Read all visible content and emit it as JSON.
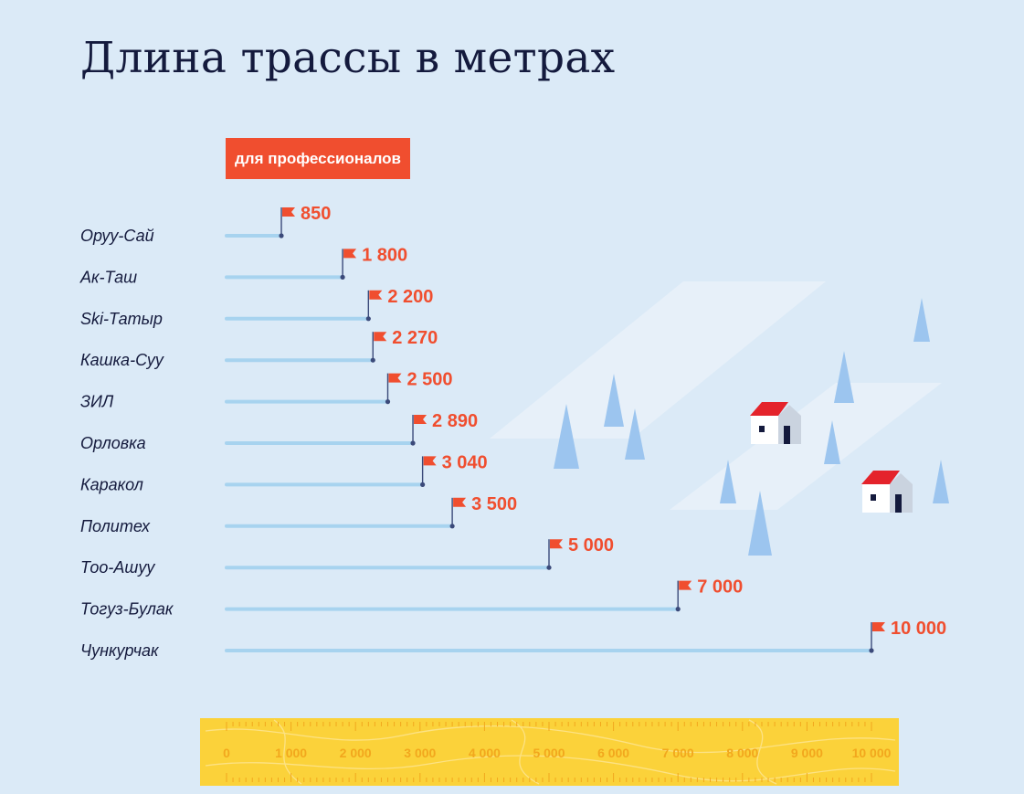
{
  "title": "Длина трассы в метрах",
  "badge": "для профессионалов",
  "colors": {
    "background": "#dbeaf7",
    "line": "#a7d3ef",
    "flag": "#f04e2f",
    "value_text": "#f04e2f",
    "label_text": "#141a3d",
    "ruler": "#fbd23a",
    "ruler_text": "#f2a71d",
    "tree": "#9cc5ef",
    "house_roof": "#e4232b"
  },
  "chart_data": {
    "type": "bar",
    "categories": [
      "Оруу-Сай",
      "Ак-Таш",
      "Ski-Татыр",
      "Кашка-Суу",
      "ЗИЛ",
      "Орловка",
      "Каракол",
      "Политех",
      "Тоо-Ашуу",
      "Тогуз-Булак",
      "Чункурчак"
    ],
    "values": [
      850,
      1800,
      2200,
      2270,
      2500,
      2890,
      3040,
      3500,
      5000,
      7000,
      10000
    ],
    "value_labels": [
      "850",
      "1 800",
      "2 200",
      "2 270",
      "2 500",
      "2 890",
      "3 040",
      "3 500",
      "5 000",
      "7 000",
      "10 000"
    ],
    "xlim": [
      0,
      10000
    ],
    "ticks": [
      0,
      1000,
      2000,
      3000,
      4000,
      5000,
      6000,
      7000,
      8000,
      9000,
      10000
    ],
    "tick_labels": [
      "0",
      "1 000",
      "2 000",
      "3 000",
      "4 000",
      "5 000",
      "6 000",
      "7 000",
      "8 000",
      "9 000",
      "10 000"
    ],
    "grid": false,
    "legend": "none"
  }
}
